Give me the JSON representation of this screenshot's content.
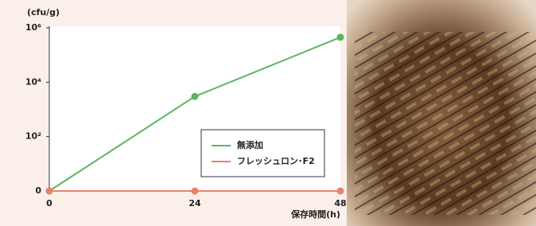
{
  "chart_data": {
    "type": "line",
    "y_unit": "(cfu/g)",
    "xlabel": "保存時間(h)",
    "x": [
      0,
      24,
      48
    ],
    "xlim": [
      0,
      48
    ],
    "xticks": [
      0,
      24,
      48
    ],
    "yscale": "log",
    "ylim": [
      1,
      1000000
    ],
    "yticks": [
      {
        "value": 1,
        "label": "0"
      },
      {
        "value": 100,
        "label": "10²"
      },
      {
        "value": 10000,
        "label": "10⁴"
      },
      {
        "value": 1000000,
        "label": "10⁶"
      }
    ],
    "series": [
      {
        "name": "無添加",
        "color": "#5cb55f",
        "values": [
          1,
          3000,
          450000
        ]
      },
      {
        "name": "フレッシュロン･F2",
        "color": "#e8826c",
        "values": [
          1,
          1,
          1
        ]
      }
    ],
    "legend": "lower right"
  }
}
